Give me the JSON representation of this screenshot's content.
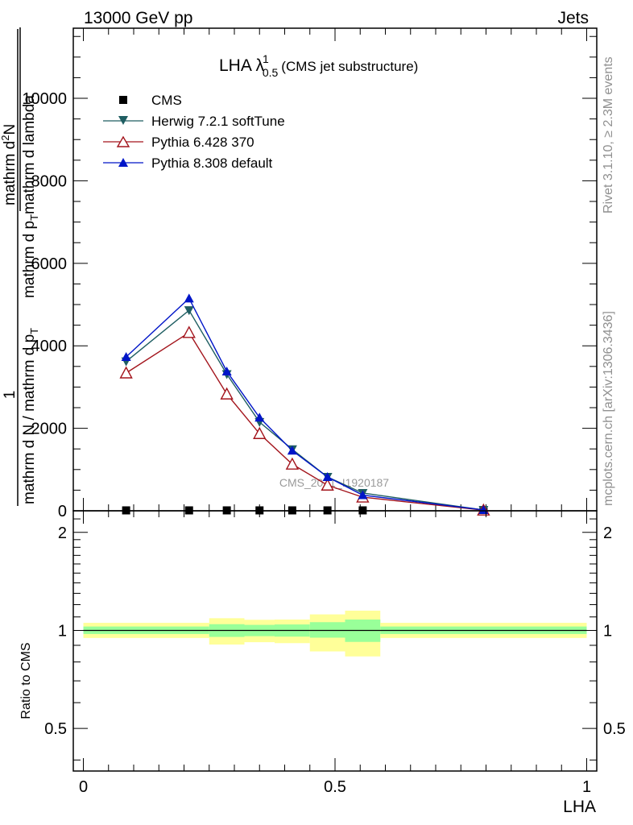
{
  "header": {
    "left": "13000 GeV pp",
    "right": "Jets"
  },
  "side_labels": {
    "rivet": "Rivet 3.1.10, ≥ 2.3M events",
    "mcplots": "mcplots.cern.ch [arXiv:1306.3436]"
  },
  "plot_title": {
    "main": "LHA λ",
    "sup": "1",
    "sub": "0.5",
    "extra": "(CMS jet substructure)"
  },
  "watermark": "CMS_2021_I1920187",
  "colors": {
    "CMS": "#000000",
    "Herwig": "#1f5e62",
    "Pythia6": "#a3141c",
    "Pythia8": "#0015c8",
    "band_outer": "#ffff99",
    "band_inner": "#99ff99"
  },
  "chart_data": [
    {
      "type": "line",
      "panel": "main",
      "ylabel_lines": [
        "1",
        "mathrm d N / mathrm d p_T",
        "mathrm d^2N",
        "mathrm d p_T mathrm d lambda"
      ],
      "ylabel_render": {
        "numerator": "1",
        "denominator": "mathrm d N / mathrm d p",
        "denominator_sub": "T",
        "right_numerator": "mathrm d",
        "right_numerator_sup": "2",
        "right_numerator_tail": "N",
        "right_denominator": "mathrm d p",
        "right_denominator_sub": "T",
        "right_denominator_tail": "mathrm d lambda"
      },
      "xlim": [
        -0.02,
        1.02
      ],
      "ylim": [
        0,
        11700
      ],
      "yticks": [
        0,
        2000,
        4000,
        6000,
        8000,
        10000
      ],
      "yticklabels": [
        "0",
        "2000",
        "4000",
        "6000",
        "8000",
        "10000"
      ],
      "legend_position": "top-left",
      "series": [
        {
          "name": "CMS",
          "marker": "square",
          "x": [
            0.085,
            0.21,
            0.285,
            0.35,
            0.415,
            0.485,
            0.555,
            0.795
          ],
          "values": [
            10,
            10,
            10,
            10,
            10,
            10,
            10,
            5
          ]
        },
        {
          "name": "Herwig 7.2.1 softTune",
          "marker": "triangle-down",
          "x": [
            0.085,
            0.21,
            0.285,
            0.35,
            0.415,
            0.485,
            0.555,
            0.795
          ],
          "values": [
            3620,
            4860,
            3310,
            2150,
            1490,
            820,
            430,
            20
          ]
        },
        {
          "name": "Pythia 6.428 370",
          "marker": "triangle-up-open",
          "x": [
            0.085,
            0.21,
            0.285,
            0.35,
            0.415,
            0.485,
            0.555,
            0.795
          ],
          "values": [
            3340,
            4320,
            2830,
            1870,
            1130,
            620,
            330,
            15
          ]
        },
        {
          "name": "Pythia 8.308 default",
          "marker": "triangle-up",
          "x": [
            0.085,
            0.21,
            0.285,
            0.35,
            0.415,
            0.485,
            0.555,
            0.795
          ],
          "values": [
            3730,
            5150,
            3380,
            2260,
            1460,
            820,
            380,
            20
          ]
        }
      ]
    },
    {
      "type": "area",
      "panel": "ratio",
      "ylabel": "Ratio to CMS",
      "xlabel": "LHA",
      "xlim": [
        -0.02,
        1.02
      ],
      "ylim": [
        0.37,
        2.33
      ],
      "yticks": [
        0.5,
        1,
        2
      ],
      "yticklabels": [
        "0.5",
        "1",
        "2"
      ],
      "xticks": [
        0,
        0.5,
        1
      ],
      "xticklabels": [
        "0",
        "0.5",
        "1"
      ],
      "reference_line": 1,
      "bins": [
        {
          "x0": 0.0,
          "x1": 0.25,
          "outer": [
            0.948,
            1.055
          ],
          "inner": [
            0.975,
            1.028
          ]
        },
        {
          "x0": 0.25,
          "x1": 0.32,
          "outer": [
            0.905,
            1.09
          ],
          "inner": [
            0.955,
            1.045
          ]
        },
        {
          "x0": 0.32,
          "x1": 0.38,
          "outer": [
            0.92,
            1.078
          ],
          "inner": [
            0.96,
            1.04
          ]
        },
        {
          "x0": 0.38,
          "x1": 0.45,
          "outer": [
            0.914,
            1.08
          ],
          "inner": [
            0.957,
            1.043
          ]
        },
        {
          "x0": 0.45,
          "x1": 0.52,
          "outer": [
            0.862,
            1.12
          ],
          "inner": [
            0.95,
            1.06
          ]
        },
        {
          "x0": 0.52,
          "x1": 0.59,
          "outer": [
            0.832,
            1.15
          ],
          "inner": [
            0.922,
            1.08
          ]
        },
        {
          "x0": 0.59,
          "x1": 1.0,
          "outer": [
            0.948,
            1.055
          ],
          "inner": [
            0.975,
            1.028
          ]
        }
      ]
    }
  ]
}
